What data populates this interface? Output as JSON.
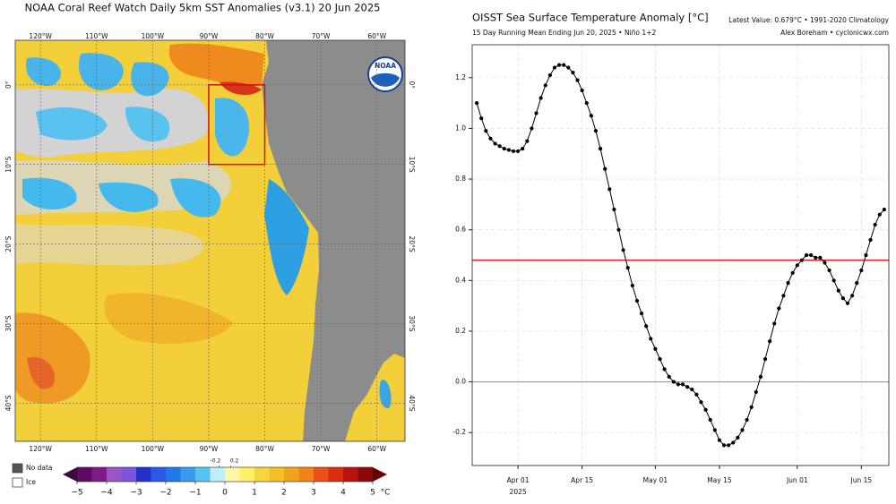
{
  "chart_data": [
    {
      "type": "map",
      "title": "NOAA Coral Reef Watch Daily 5km SST Anomalies  (v3.1)   20 Jun 2025",
      "logo_text": "NOAA",
      "xlim": [
        -124.5,
        -55
      ],
      "ylim": [
        -44.8,
        5.6
      ],
      "xticks": [
        {
          "value": -120,
          "label": "120°W"
        },
        {
          "value": -110,
          "label": "110°W"
        },
        {
          "value": -100,
          "label": "100°W"
        },
        {
          "value": -90,
          "label": "90°W"
        },
        {
          "value": -80,
          "label": "80°W"
        },
        {
          "value": -70,
          "label": "70°W"
        },
        {
          "value": -60,
          "label": "60°W"
        }
      ],
      "yticks": [
        {
          "value": 0,
          "label": "0°"
        },
        {
          "value": -10,
          "label": "10°S"
        },
        {
          "value": -20,
          "label": "20°S"
        },
        {
          "value": -30,
          "label": "30°S"
        },
        {
          "value": -40,
          "label": "40°S"
        }
      ],
      "region": {
        "lon": [
          -90,
          -80
        ],
        "lat": [
          0,
          -10
        ],
        "color": "#d01010"
      },
      "legend": [
        {
          "label": "No data",
          "color": "#555555"
        },
        {
          "label": "Ice",
          "color": "#ffffff"
        }
      ],
      "colorbar": {
        "range": [
          -5,
          5
        ],
        "ticks": [
          {
            "value": -5,
            "label": "−5"
          },
          {
            "value": -4,
            "label": "−4"
          },
          {
            "value": -3,
            "label": "−3"
          },
          {
            "value": -2,
            "label": "−2"
          },
          {
            "value": -1,
            "label": "−1"
          },
          0,
          1,
          2,
          3,
          4,
          5
        ],
        "minor_ticks": [
          -0.2,
          0.2
        ],
        "unit": "°C",
        "under_color": "#3d0a3d",
        "over_color": "#6b0000",
        "colors": [
          "#5e0b63",
          "#7e1c85",
          "#9a55c6",
          "#7a55dc",
          "#2430c8",
          "#2b58e6",
          "#1f7ae8",
          "#3a9af0",
          "#55c4f5",
          "#bfeefc",
          "#fff7a8",
          "#fff06a",
          "#f9d342",
          "#f5c026",
          "#f2a21d",
          "#ef8517",
          "#e8521a",
          "#d92d12",
          "#b81212",
          "#8a0a0a"
        ]
      }
    },
    {
      "type": "line",
      "title": "OISST Sea Surface Temperature Anomaly [°C]",
      "subtitle": "15 Day Running Mean Ending Jun 20, 2025 • Niño 1+2",
      "note_top": "Latest Value: 0.679°C • 1991-2020 Climatology",
      "note_author": "Alex Boreham • cyclonicwx.com",
      "color": "#000000",
      "grid": true,
      "hline": {
        "value": 0.48,
        "color": "#d62020"
      },
      "xlim": [
        "2025-03-22",
        "2025-06-21"
      ],
      "xticks": [
        {
          "value": "2025-04-01",
          "label": "Apr 01"
        },
        {
          "value": "2025-04-15",
          "label": "Apr 15"
        },
        {
          "value": "2025-05-01",
          "label": "May 01"
        },
        {
          "value": "2025-05-15",
          "label": "May 15"
        },
        {
          "value": "2025-06-01",
          "label": "Jun 01"
        },
        {
          "value": "2025-06-15",
          "label": "Jun 15"
        }
      ],
      "x_year_label": "2025",
      "ylim": [
        -0.33,
        1.33
      ],
      "yticks": [
        -0.2,
        {
          "value": 0,
          "label": "0.0"
        },
        0.2,
        0.4,
        0.6,
        0.8,
        {
          "value": 1,
          "label": "1.0"
        },
        1.2
      ],
      "x": [
        "2025-03-23",
        "2025-03-24",
        "2025-03-25",
        "2025-03-26",
        "2025-03-27",
        "2025-03-28",
        "2025-03-29",
        "2025-03-30",
        "2025-03-31",
        "2025-04-01",
        "2025-04-02",
        "2025-04-03",
        "2025-04-04",
        "2025-04-05",
        "2025-04-06",
        "2025-04-07",
        "2025-04-08",
        "2025-04-09",
        "2025-04-10",
        "2025-04-11",
        "2025-04-12",
        "2025-04-13",
        "2025-04-14",
        "2025-04-15",
        "2025-04-16",
        "2025-04-17",
        "2025-04-18",
        "2025-04-19",
        "2025-04-20",
        "2025-04-21",
        "2025-04-22",
        "2025-04-23",
        "2025-04-24",
        "2025-04-25",
        "2025-04-26",
        "2025-04-27",
        "2025-04-28",
        "2025-04-29",
        "2025-04-30",
        "2025-05-01",
        "2025-05-02",
        "2025-05-03",
        "2025-05-04",
        "2025-05-05",
        "2025-05-06",
        "2025-05-07",
        "2025-05-08",
        "2025-05-09",
        "2025-05-10",
        "2025-05-11",
        "2025-05-12",
        "2025-05-13",
        "2025-05-14",
        "2025-05-15",
        "2025-05-16",
        "2025-05-17",
        "2025-05-18",
        "2025-05-19",
        "2025-05-20",
        "2025-05-21",
        "2025-05-22",
        "2025-05-23",
        "2025-05-24",
        "2025-05-25",
        "2025-05-26",
        "2025-05-27",
        "2025-05-28",
        "2025-05-29",
        "2025-05-30",
        "2025-05-31",
        "2025-06-01",
        "2025-06-02",
        "2025-06-03",
        "2025-06-04",
        "2025-06-05",
        "2025-06-06",
        "2025-06-07",
        "2025-06-08",
        "2025-06-09",
        "2025-06-10",
        "2025-06-11",
        "2025-06-12",
        "2025-06-13",
        "2025-06-14",
        "2025-06-15",
        "2025-06-16",
        "2025-06-17",
        "2025-06-18",
        "2025-06-19",
        "2025-06-20"
      ],
      "values": [
        1.1,
        1.04,
        0.99,
        0.96,
        0.94,
        0.93,
        0.92,
        0.915,
        0.91,
        0.91,
        0.92,
        0.95,
        1.0,
        1.06,
        1.12,
        1.17,
        1.21,
        1.24,
        1.25,
        1.25,
        1.24,
        1.22,
        1.19,
        1.15,
        1.1,
        1.05,
        0.99,
        0.92,
        0.84,
        0.76,
        0.68,
        0.6,
        0.52,
        0.45,
        0.38,
        0.32,
        0.27,
        0.22,
        0.17,
        0.13,
        0.09,
        0.05,
        0.02,
        0.0,
        -0.01,
        -0.01,
        -0.02,
        -0.03,
        -0.05,
        -0.08,
        -0.11,
        -0.15,
        -0.19,
        -0.23,
        -0.25,
        -0.25,
        -0.24,
        -0.22,
        -0.19,
        -0.15,
        -0.1,
        -0.04,
        0.02,
        0.09,
        0.16,
        0.23,
        0.29,
        0.34,
        0.39,
        0.43,
        0.46,
        0.48,
        0.5,
        0.5,
        0.49,
        0.49,
        0.47,
        0.44,
        0.4,
        0.36,
        0.33,
        0.31,
        0.34,
        0.39,
        0.44,
        0.5,
        0.56,
        0.62,
        0.66,
        0.68
      ]
    }
  ]
}
